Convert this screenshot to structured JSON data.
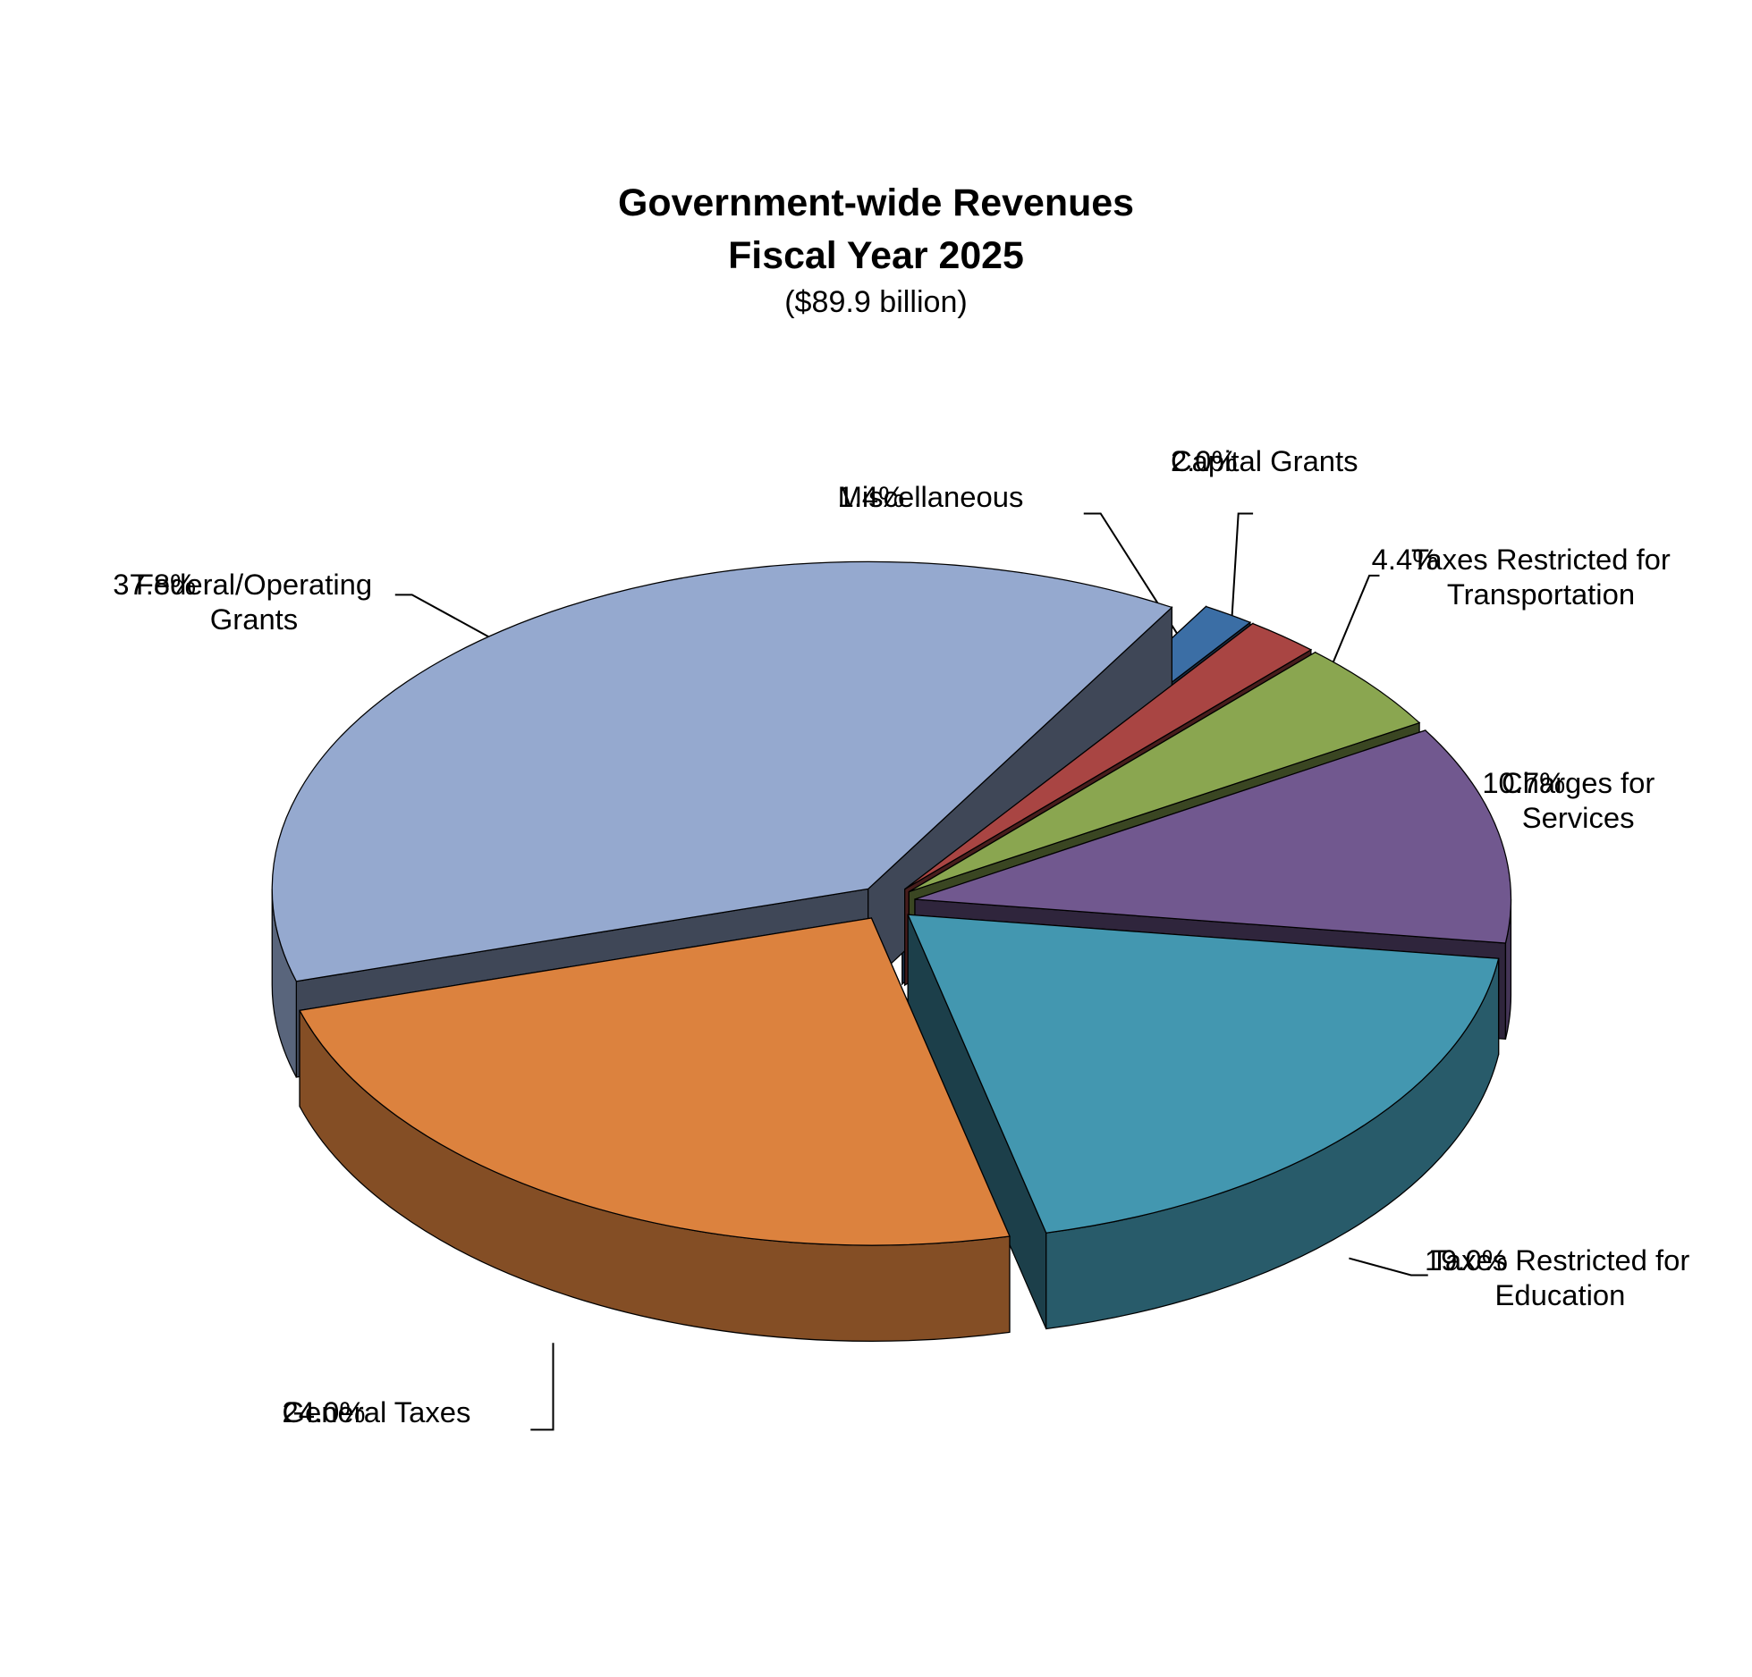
{
  "chart_data": {
    "type": "pie3d",
    "title": "Government-wide Revenues",
    "subtitle": "Fiscal Year 2025",
    "note": "($89.9 billion)",
    "categories": [
      "Federal/Operating Grants",
      "Miscellaneous",
      "Capital Grants",
      "Taxes Restricted for Transportation",
      "Charges for Services",
      "Taxes Restricted for Education",
      "General Taxes"
    ],
    "values": [
      37.8,
      1.4,
      2.0,
      4.4,
      10.7,
      19.0,
      24.0
    ],
    "value_labels": [
      "37.8%",
      "1.4%",
      "2.0%",
      "4.4%",
      "10.7%",
      "19.0%",
      "24.0%"
    ],
    "colors": [
      "#95a9cf",
      "#3b6ea5",
      "#a94543",
      "#8aa650",
      "#71588f",
      "#4397b0",
      "#dc823e"
    ]
  }
}
